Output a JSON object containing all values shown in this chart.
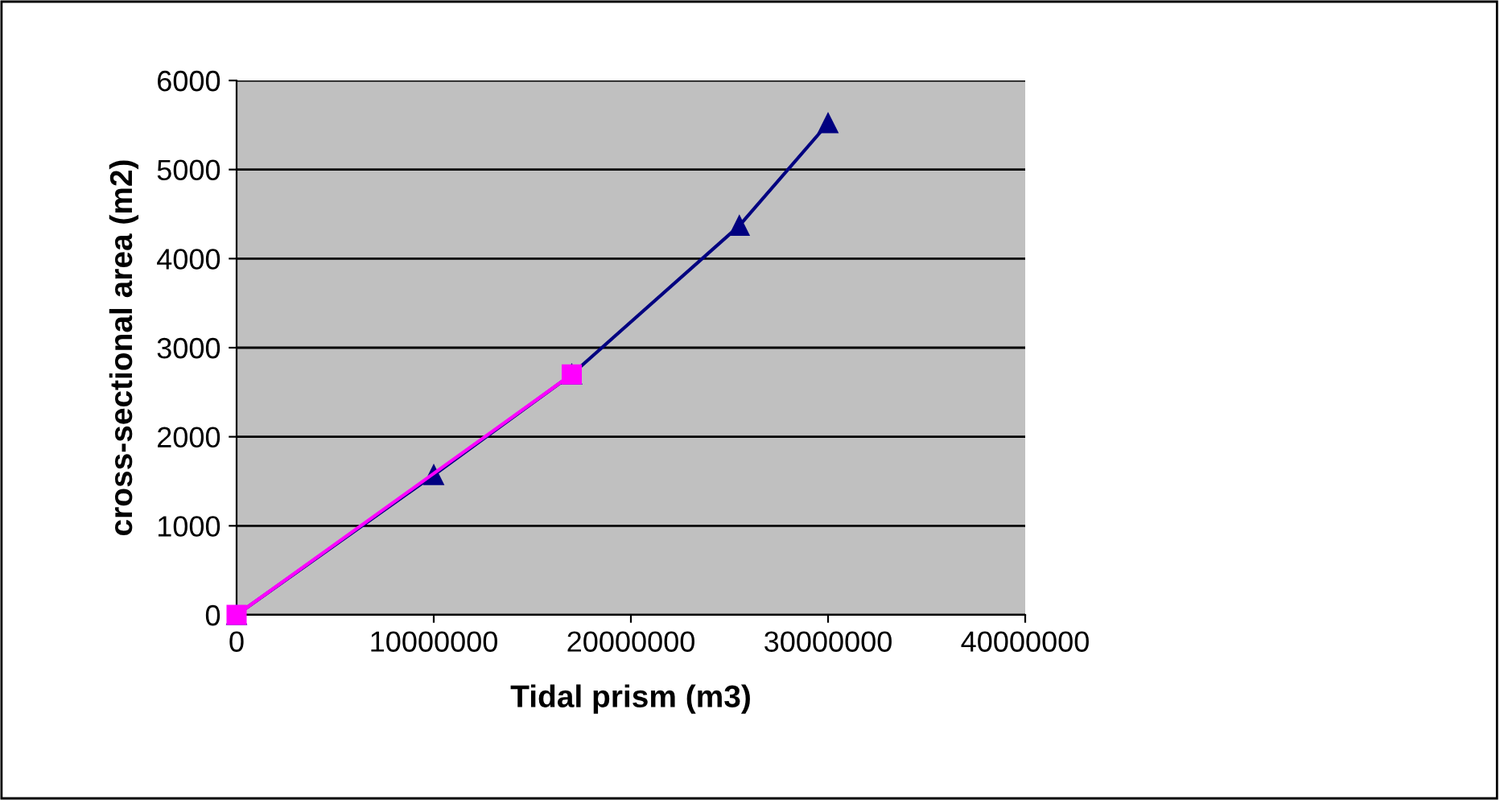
{
  "chart_data": {
    "type": "line",
    "xlabel": "Tidal prism (m3)",
    "ylabel": "cross-sectional area (m2)",
    "xlim": [
      0,
      40000000
    ],
    "xticks": [
      0,
      10000000,
      20000000,
      30000000,
      40000000
    ],
    "ylim": [
      0,
      6000
    ],
    "yticks": [
      0,
      1000,
      2000,
      3000,
      4000,
      5000,
      6000
    ],
    "grid": "y",
    "series": [
      {
        "color": "#000080",
        "marker": "triangle",
        "x": [
          0,
          10000000,
          17000000,
          25500000,
          30000000
        ],
        "values": [
          0,
          1570,
          2700,
          4370,
          5520
        ]
      },
      {
        "color": "#ff00ff",
        "marker": "square",
        "x": [
          0,
          17000000
        ],
        "values": [
          0,
          2700
        ]
      }
    ]
  }
}
